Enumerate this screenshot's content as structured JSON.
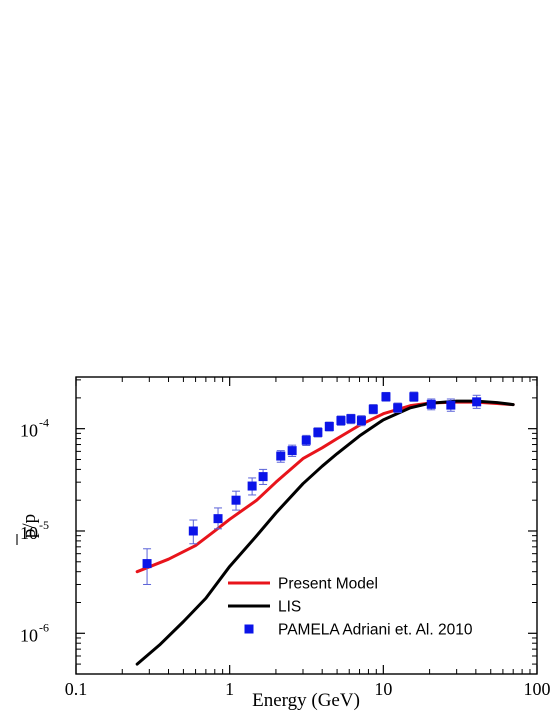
{
  "chart_data": {
    "type": "line",
    "x_scale": "log",
    "y_scale": "log",
    "xlim": [
      0.1,
      100
    ],
    "ylim": [
      4e-07,
      0.00032
    ],
    "xlabel": "Energy (GeV)",
    "ylabel": "p/p",
    "x_ticks": [
      {
        "value": 0.1,
        "label": "0.1"
      },
      {
        "value": 1,
        "label": "1"
      },
      {
        "value": 10,
        "label": "10"
      },
      {
        "value": 100,
        "label": "100"
      }
    ],
    "y_ticks": [
      {
        "value": 1e-06,
        "base": "10",
        "exp": "-6"
      },
      {
        "value": 1e-05,
        "base": "10",
        "exp": "-5"
      },
      {
        "value": 0.0001,
        "base": "10",
        "exp": "-4"
      }
    ],
    "legend_position": "bottom-center",
    "series": [
      {
        "name": "Present Model",
        "kind": "line",
        "color": "#e8141b",
        "points": [
          [
            0.25,
            4e-06
          ],
          [
            0.4,
            5.3e-06
          ],
          [
            0.6,
            7.2e-06
          ],
          [
            0.8,
            1e-05
          ],
          [
            1.0,
            1.3e-05
          ],
          [
            1.5,
            2e-05
          ],
          [
            2.0,
            3e-05
          ],
          [
            3.0,
            5.1e-05
          ],
          [
            4.0,
            6.5e-05
          ],
          [
            5.0,
            8e-05
          ],
          [
            7.0,
            0.000108
          ],
          [
            10.0,
            0.00014
          ],
          [
            15.0,
            0.000168
          ],
          [
            20.0,
            0.000178
          ],
          [
            30.0,
            0.000182
          ],
          [
            40.0,
            0.000182
          ],
          [
            55.0,
            0.000176
          ],
          [
            70.0,
            0.000172
          ]
        ]
      },
      {
        "name": "LIS",
        "kind": "line",
        "color": "#000000",
        "points": [
          [
            0.25,
            5e-07
          ],
          [
            0.35,
            7.7e-07
          ],
          [
            0.5,
            1.3e-06
          ],
          [
            0.7,
            2.2e-06
          ],
          [
            1.0,
            4.5e-06
          ],
          [
            1.5,
            9e-06
          ],
          [
            2.0,
            1.5e-05
          ],
          [
            3.0,
            2.9e-05
          ],
          [
            4.0,
            4.3e-05
          ],
          [
            5.0,
            5.7e-05
          ],
          [
            7.0,
            8.5e-05
          ],
          [
            10.0,
            0.000122
          ],
          [
            15.0,
            0.00016
          ],
          [
            20.0,
            0.000177
          ],
          [
            30.0,
            0.000186
          ],
          [
            40.0,
            0.000186
          ],
          [
            55.0,
            0.00018
          ],
          [
            70.0,
            0.000172
          ]
        ]
      },
      {
        "name": "PAMELA Adriani et. Al. 2010",
        "kind": "scatter",
        "color": "#0b14e8",
        "points": [
          {
            "x": 0.29,
            "y": 4.8e-06,
            "lo": 3e-06,
            "hi": 6.7e-06
          },
          {
            "x": 0.58,
            "y": 1e-05,
            "lo": 7.5e-06,
            "hi": 1.28e-05
          },
          {
            "x": 0.84,
            "y": 1.32e-05,
            "lo": 1.05e-05,
            "hi": 1.68e-05
          },
          {
            "x": 1.1,
            "y": 2e-05,
            "lo": 1.6e-05,
            "hi": 2.45e-05
          },
          {
            "x": 1.4,
            "y": 2.75e-05,
            "lo": 2.25e-05,
            "hi": 3.3e-05
          },
          {
            "x": 1.65,
            "y": 3.4e-05,
            "lo": 2.85e-05,
            "hi": 4e-05
          },
          {
            "x": 2.15,
            "y": 5.4e-05,
            "lo": 4.7e-05,
            "hi": 6.1e-05
          },
          {
            "x": 2.55,
            "y": 6.1e-05,
            "lo": 5.35e-05,
            "hi": 6.9e-05
          },
          {
            "x": 3.15,
            "y": 7.7e-05,
            "lo": 6.85e-05,
            "hi": 8.6e-05
          },
          {
            "x": 3.75,
            "y": 9.2e-05,
            "lo": 8.3e-05,
            "hi": 0.000102
          },
          {
            "x": 4.45,
            "y": 0.000105,
            "lo": 9.5e-05,
            "hi": 0.000116
          },
          {
            "x": 5.3,
            "y": 0.00012,
            "lo": 0.000108,
            "hi": 0.000133
          },
          {
            "x": 6.15,
            "y": 0.000125,
            "lo": 0.000112,
            "hi": 0.000138
          },
          {
            "x": 7.2,
            "y": 0.00012,
            "lo": 0.000107,
            "hi": 0.000134
          },
          {
            "x": 8.6,
            "y": 0.000155,
            "lo": 0.00014,
            "hi": 0.000172
          },
          {
            "x": 10.4,
            "y": 0.000205,
            "lo": 0.000186,
            "hi": 0.000226
          },
          {
            "x": 12.4,
            "y": 0.00016,
            "lo": 0.000144,
            "hi": 0.000178
          },
          {
            "x": 15.8,
            "y": 0.000205,
            "lo": 0.000185,
            "hi": 0.000228
          },
          {
            "x": 20.5,
            "y": 0.000173,
            "lo": 0.000153,
            "hi": 0.000195
          },
          {
            "x": 27.5,
            "y": 0.00017,
            "lo": 0.000148,
            "hi": 0.000195
          },
          {
            "x": 40.5,
            "y": 0.000183,
            "lo": 0.000158,
            "hi": 0.000212
          }
        ]
      }
    ]
  }
}
